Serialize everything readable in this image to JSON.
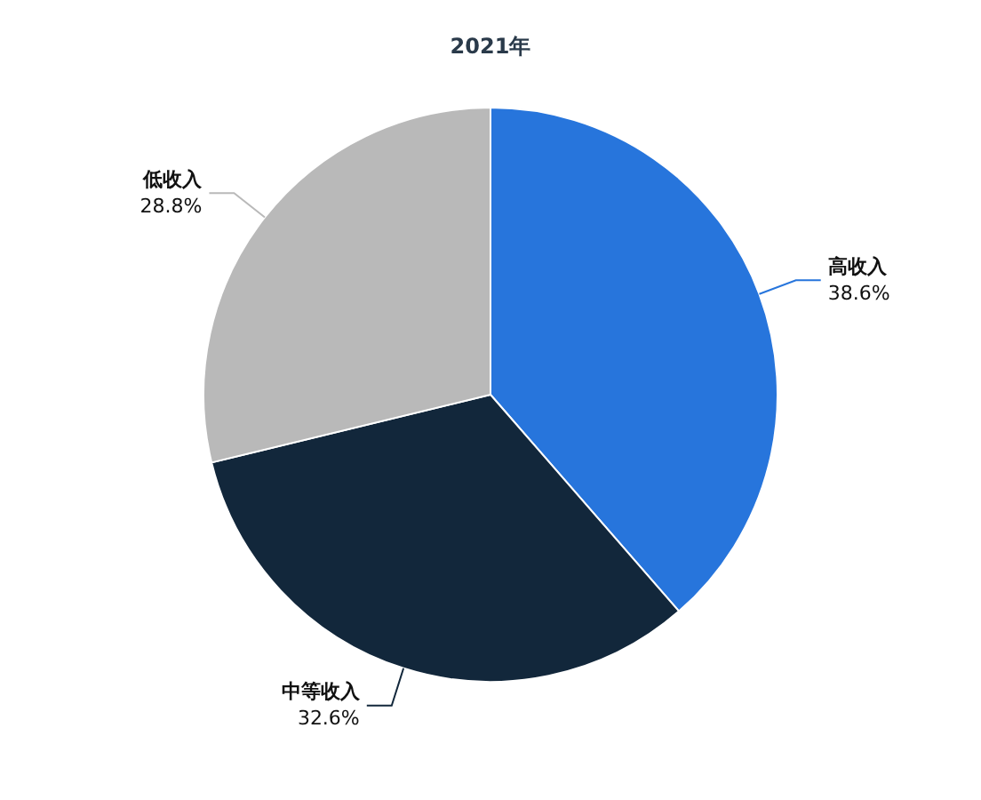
{
  "chart_data": {
    "type": "pie",
    "title": "2021年",
    "categories": [
      "高收入",
      "中等收入",
      "低收入"
    ],
    "values": [
      38.6,
      32.6,
      28.8
    ],
    "colors": [
      "#2775dc",
      "#12273b",
      "#b9b9b9"
    ],
    "value_labels": [
      "38.6%",
      "32.6%",
      "28.8%"
    ],
    "legend": false
  }
}
